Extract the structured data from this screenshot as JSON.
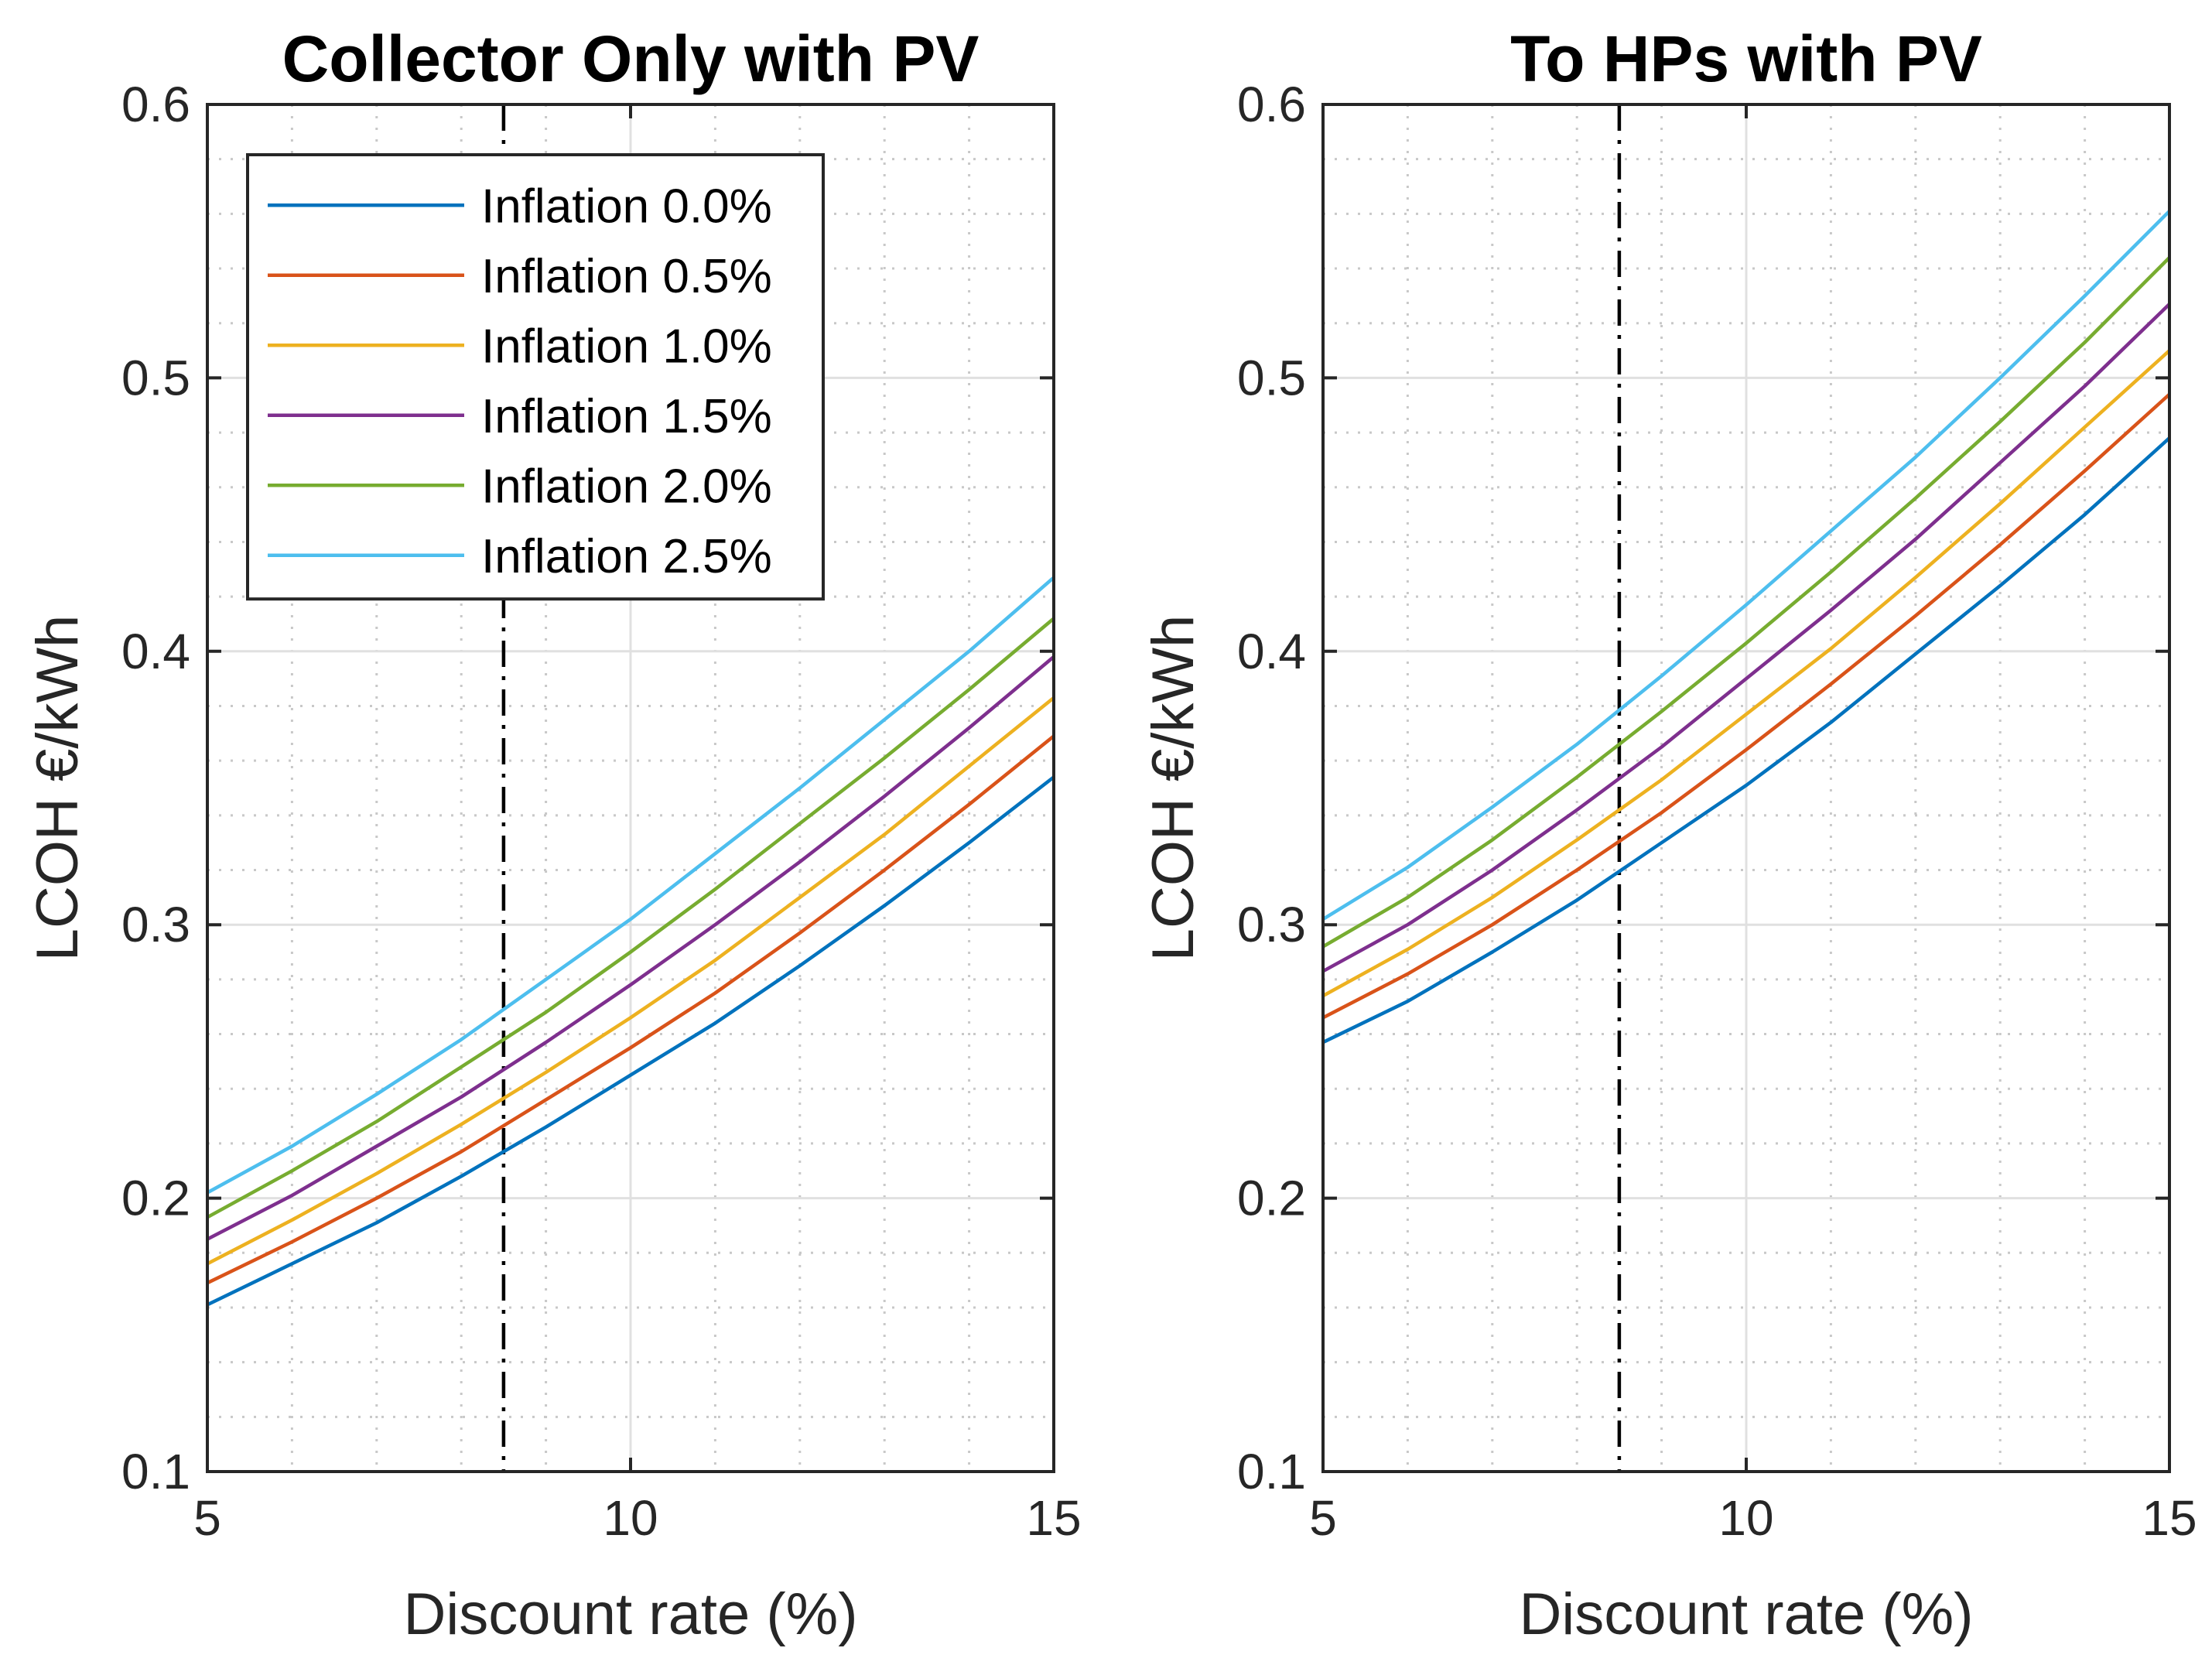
{
  "chart_data": [
    {
      "type": "line",
      "title": "Collector Only with PV",
      "xlabel": "Discount rate (%)",
      "ylabel": "LCOH €/kWh",
      "xlim": [
        5,
        15
      ],
      "ylim": [
        0.1,
        0.6
      ],
      "xticks": [
        "5",
        "10",
        "15"
      ],
      "yticks": [
        "0.1",
        "0.2",
        "0.3",
        "0.4",
        "0.5",
        "0.6"
      ],
      "grid": true,
      "minor_grid": true,
      "legend_position": "top-left",
      "reference_line": {
        "x": 8.5,
        "style": "dash-dot",
        "color": "#000000"
      },
      "x": [
        5,
        6,
        7,
        8,
        9,
        10,
        11,
        12,
        13,
        14,
        15
      ],
      "series": [
        {
          "name": "Inflation 0.0%",
          "color": "#0072BD",
          "values": [
            0.161,
            0.176,
            0.191,
            0.208,
            0.226,
            0.245,
            0.264,
            0.285,
            0.307,
            0.33,
            0.354
          ]
        },
        {
          "name": "Inflation 0.5%",
          "color": "#D95319",
          "values": [
            0.169,
            0.184,
            0.2,
            0.217,
            0.236,
            0.255,
            0.275,
            0.297,
            0.32,
            0.344,
            0.369
          ]
        },
        {
          "name": "Inflation 1.0%",
          "color": "#EDB120",
          "values": [
            0.176,
            0.192,
            0.209,
            0.227,
            0.246,
            0.266,
            0.287,
            0.31,
            0.333,
            0.358,
            0.383
          ]
        },
        {
          "name": "Inflation 1.5%",
          "color": "#7E2F8E",
          "values": [
            0.185,
            0.201,
            0.219,
            0.237,
            0.257,
            0.278,
            0.3,
            0.323,
            0.347,
            0.372,
            0.398
          ]
        },
        {
          "name": "Inflation 2.0%",
          "color": "#77AC30",
          "values": [
            0.193,
            0.21,
            0.228,
            0.248,
            0.268,
            0.29,
            0.313,
            0.337,
            0.361,
            0.386,
            0.412
          ]
        },
        {
          "name": "Inflation 2.5%",
          "color": "#4DBEEE",
          "values": [
            0.202,
            0.219,
            0.238,
            0.258,
            0.28,
            0.302,
            0.326,
            0.35,
            0.375,
            0.4,
            0.427
          ]
        }
      ]
    },
    {
      "type": "line",
      "title": "To HPs with PV",
      "xlabel": "Discount rate (%)",
      "ylabel": "LCOH €/kWh",
      "xlim": [
        5,
        15
      ],
      "ylim": [
        0.1,
        0.6
      ],
      "xticks": [
        "5",
        "10",
        "15"
      ],
      "yticks": [
        "0.1",
        "0.2",
        "0.3",
        "0.4",
        "0.5",
        "0.6"
      ],
      "grid": true,
      "minor_grid": true,
      "reference_line": {
        "x": 8.5,
        "style": "dash-dot",
        "color": "#000000"
      },
      "x": [
        5,
        6,
        7,
        8,
        9,
        10,
        11,
        12,
        13,
        14,
        15
      ],
      "series": [
        {
          "name": "Inflation 0.0%",
          "color": "#0072BD",
          "values": [
            0.257,
            0.272,
            0.29,
            0.309,
            0.33,
            0.351,
            0.374,
            0.399,
            0.424,
            0.45,
            0.478
          ]
        },
        {
          "name": "Inflation 0.5%",
          "color": "#D95319",
          "values": [
            0.266,
            0.282,
            0.3,
            0.32,
            0.341,
            0.364,
            0.388,
            0.413,
            0.439,
            0.466,
            0.494
          ]
        },
        {
          "name": "Inflation 1.0%",
          "color": "#EDB120",
          "values": [
            0.274,
            0.291,
            0.31,
            0.331,
            0.353,
            0.377,
            0.401,
            0.427,
            0.454,
            0.482,
            0.51
          ]
        },
        {
          "name": "Inflation 1.5%",
          "color": "#7E2F8E",
          "values": [
            0.283,
            0.3,
            0.32,
            0.342,
            0.365,
            0.39,
            0.415,
            0.441,
            0.469,
            0.497,
            0.527
          ]
        },
        {
          "name": "Inflation 2.0%",
          "color": "#77AC30",
          "values": [
            0.292,
            0.31,
            0.331,
            0.354,
            0.378,
            0.403,
            0.429,
            0.456,
            0.484,
            0.513,
            0.544
          ]
        },
        {
          "name": "Inflation 2.5%",
          "color": "#4DBEEE",
          "values": [
            0.302,
            0.321,
            0.343,
            0.366,
            0.391,
            0.417,
            0.444,
            0.471,
            0.5,
            0.53,
            0.561
          ]
        }
      ]
    }
  ]
}
